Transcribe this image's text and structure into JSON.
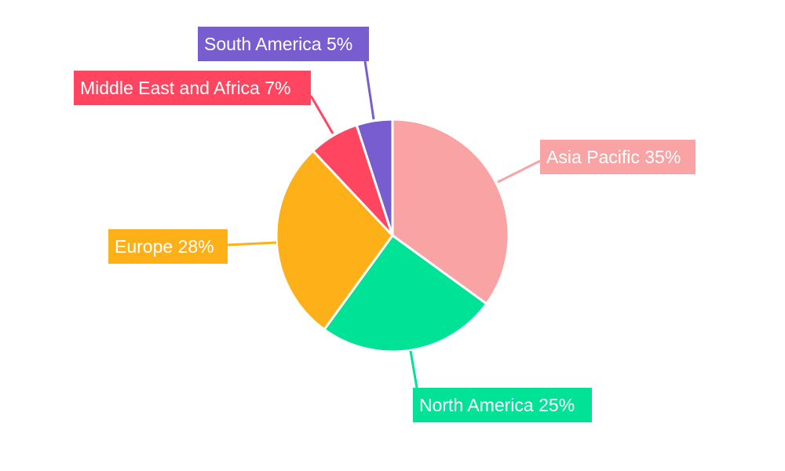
{
  "chart_data": {
    "type": "pie",
    "title": "",
    "start_angle": "top, clockwise",
    "slices": [
      {
        "label": "Asia Pacific",
        "value": 35,
        "display": "Asia Pacific 35%",
        "color": "#F9A3A4"
      },
      {
        "label": "North America",
        "value": 25,
        "display": "North America 25%",
        "color": "#00E396"
      },
      {
        "label": "Europe",
        "value": 28,
        "display": "Europe 28%",
        "color": "#FEB019"
      },
      {
        "label": "Middle East and Africa",
        "value": 7,
        "display": "Middle East and Africa 7%",
        "color": "#FF4560"
      },
      {
        "label": "South America",
        "value": 5,
        "display": "South America 5%",
        "color": "#775DD0"
      }
    ],
    "legend": "none (outside callout labels)"
  }
}
